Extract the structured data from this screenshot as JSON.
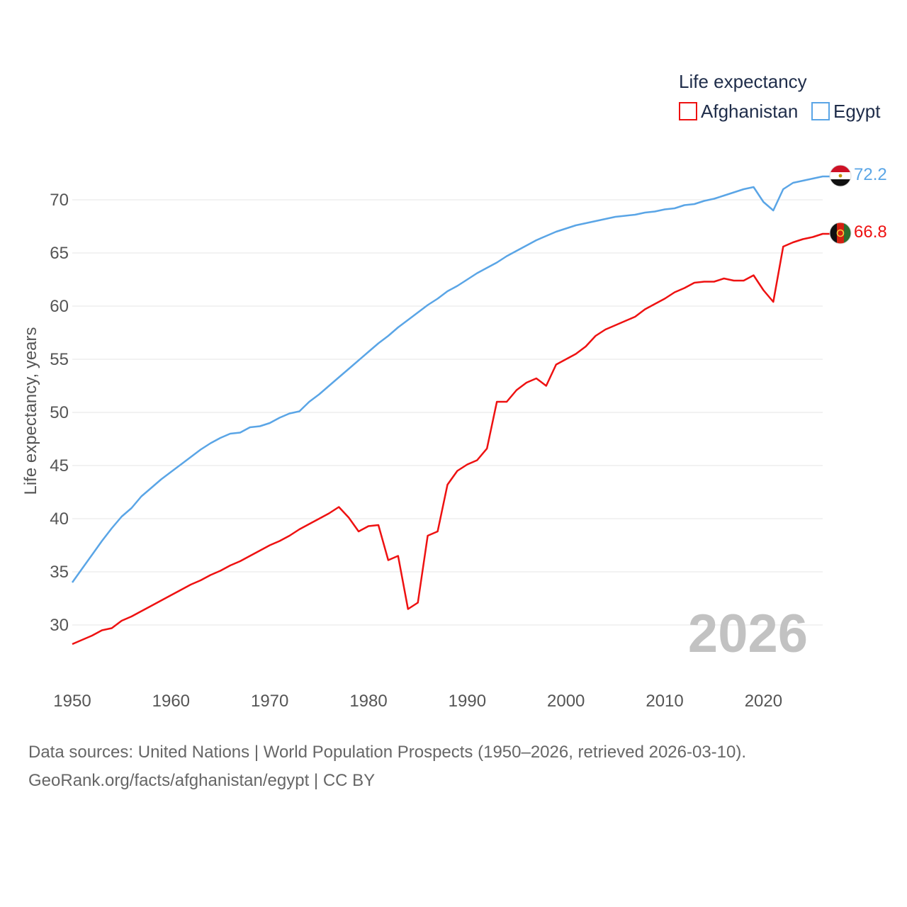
{
  "colors": {
    "afghanistan": "#ee1111",
    "egypt": "#5aa5e6",
    "grid": "#e6e6e6",
    "tick_text": "#555555",
    "watermark": "#c2c2c2"
  },
  "legend": {
    "title": "Life expectancy",
    "items": [
      {
        "label": "Afghanistan",
        "color": "#ee1111"
      },
      {
        "label": "Egypt",
        "color": "#5aa5e6"
      }
    ]
  },
  "year_label": "2026",
  "end_labels": {
    "egypt": "72.2",
    "afghanistan": "66.8"
  },
  "icons": {
    "egypt_flag": "egypt-flag-icon",
    "afghanistan_flag": "afghanistan-flag-icon"
  },
  "footer": {
    "line1": "Data sources: United Nations | World Population Prospects (1950–2026, retrieved 2026-03-10).",
    "line2": "GeoRank.org/facts/afghanistan/egypt | CC BY"
  },
  "chart_data": {
    "type": "line",
    "title": "Life expectancy",
    "xlabel": "",
    "ylabel": "Life expectancy, years",
    "xlim": [
      1950,
      2026
    ],
    "ylim": [
      27,
      74
    ],
    "x_ticks": [
      1950,
      1960,
      1970,
      1980,
      1990,
      2000,
      2010,
      2020
    ],
    "y_ticks": [
      30,
      35,
      40,
      45,
      50,
      55,
      60,
      65,
      70
    ],
    "grid": true,
    "legend_position": "top-right",
    "x": [
      1950,
      1951,
      1952,
      1953,
      1954,
      1955,
      1956,
      1957,
      1958,
      1959,
      1960,
      1961,
      1962,
      1963,
      1964,
      1965,
      1966,
      1967,
      1968,
      1969,
      1970,
      1971,
      1972,
      1973,
      1974,
      1975,
      1976,
      1977,
      1978,
      1979,
      1980,
      1981,
      1982,
      1983,
      1984,
      1985,
      1986,
      1987,
      1988,
      1989,
      1990,
      1991,
      1992,
      1993,
      1994,
      1995,
      1996,
      1997,
      1998,
      1999,
      2000,
      2001,
      2002,
      2003,
      2004,
      2005,
      2006,
      2007,
      2008,
      2009,
      2010,
      2011,
      2012,
      2013,
      2014,
      2015,
      2016,
      2017,
      2018,
      2019,
      2020,
      2021,
      2022,
      2023,
      2024,
      2025,
      2026
    ],
    "series": [
      {
        "name": "Afghanistan",
        "color": "#ee1111",
        "values": [
          28.2,
          28.6,
          29.0,
          29.5,
          29.7,
          30.4,
          30.8,
          31.3,
          31.8,
          32.3,
          32.8,
          33.3,
          33.8,
          34.2,
          34.7,
          35.1,
          35.6,
          36.0,
          36.5,
          37.0,
          37.5,
          37.9,
          38.4,
          39.0,
          39.5,
          40.0,
          40.5,
          41.1,
          40.1,
          38.8,
          39.3,
          39.4,
          36.1,
          36.5,
          31.5,
          32.1,
          38.4,
          38.8,
          43.2,
          44.5,
          45.1,
          45.5,
          46.6,
          51.0,
          51.0,
          52.1,
          52.8,
          53.2,
          52.5,
          54.5,
          55.0,
          55.5,
          56.2,
          57.2,
          57.8,
          58.2,
          58.6,
          59.0,
          59.7,
          60.2,
          60.7,
          61.3,
          61.7,
          62.2,
          62.3,
          62.3,
          62.6,
          62.4,
          62.4,
          62.9,
          61.5,
          60.4,
          65.6,
          66.0,
          66.3,
          66.5,
          66.8
        ]
      },
      {
        "name": "Egypt",
        "color": "#5aa5e6",
        "values": [
          34.0,
          35.3,
          36.6,
          37.9,
          39.1,
          40.2,
          41.0,
          42.1,
          42.9,
          43.7,
          44.4,
          45.1,
          45.8,
          46.5,
          47.1,
          47.6,
          48.0,
          48.1,
          48.6,
          48.7,
          49.0,
          49.5,
          49.9,
          50.1,
          51.0,
          51.7,
          52.5,
          53.3,
          54.1,
          54.9,
          55.7,
          56.5,
          57.2,
          58.0,
          58.7,
          59.4,
          60.1,
          60.7,
          61.4,
          61.9,
          62.5,
          63.1,
          63.6,
          64.1,
          64.7,
          65.2,
          65.7,
          66.2,
          66.6,
          67.0,
          67.3,
          67.6,
          67.8,
          68.0,
          68.2,
          68.4,
          68.5,
          68.6,
          68.8,
          68.9,
          69.1,
          69.2,
          69.5,
          69.6,
          69.9,
          70.1,
          70.4,
          70.7,
          71.0,
          71.2,
          69.8,
          69.0,
          71.0,
          71.6,
          71.8,
          72.0,
          72.2
        ]
      }
    ]
  }
}
